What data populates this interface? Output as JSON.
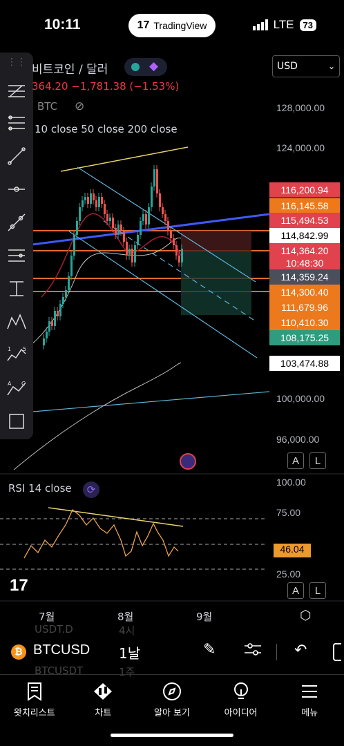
{
  "status": {
    "time": "10:11",
    "tv_label": "TradingView",
    "network": "LTE",
    "battery": "73"
  },
  "header": {
    "title": "비트코인 / 달러",
    "price_change": "364.20  −1,781.38 (−1.53%)",
    "ticker_small": "BTC",
    "indicators": "10 close 50 close 200 close",
    "currency": "USD"
  },
  "price_axis": {
    "ticks": [
      "128,000.00",
      "124,000.00",
      "100,000.00",
      "96,000.00"
    ],
    "tags": [
      {
        "label": "116,200.94",
        "bg": "#e0434d",
        "fg": "#ffffff"
      },
      {
        "label": "116,145.58",
        "bg": "#ec7a1c",
        "fg": "#ffffff"
      },
      {
        "label": "115,494.53",
        "bg": "#e0434d",
        "fg": "#ffffff"
      },
      {
        "label": "114,842.99",
        "bg": "#ffffff",
        "fg": "#000000"
      },
      {
        "label": "114,364.20",
        "bg": "#e0434d",
        "fg": "#ffffff"
      },
      {
        "label": "10:48:30",
        "bg": "#e0434d",
        "fg": "#ffffff"
      },
      {
        "label": "114,359.24",
        "bg": "#4a4f5c",
        "fg": "#ffffff"
      },
      {
        "label": "114,300.40",
        "bg": "#ec7a1c",
        "fg": "#ffffff"
      },
      {
        "label": "111,679.96",
        "bg": "#ec7a1c",
        "fg": "#ffffff"
      },
      {
        "label": "110,410.30",
        "bg": "#ec7a1c",
        "fg": "#ffffff"
      },
      {
        "label": "108,175.25",
        "bg": "#2e9c7e",
        "fg": "#ffffff"
      },
      {
        "label": "103,474.88",
        "bg": "#ffffff",
        "fg": "#000000"
      }
    ],
    "btn_a": "A",
    "btn_l": "L"
  },
  "rsi": {
    "label": "RSI 14 close",
    "ticks": [
      "100.00",
      "75.00",
      "25.00"
    ],
    "value_tag": "46.04",
    "value_tag_color": "#ec9a2c"
  },
  "time_axis": {
    "labels": [
      "7월",
      "8월",
      "9월"
    ]
  },
  "symbol_bar": {
    "symbol": "BTCUSD",
    "interval": "1날",
    "ghost_top_symbol": "USDT.D",
    "ghost_top_interval": "4시",
    "ghost_bottom_symbol": "BTCUSDT",
    "ghost_bottom_interval": "1주"
  },
  "bottom_nav": [
    {
      "label": "왓치리스트",
      "icon": "watchlist-icon"
    },
    {
      "label": "차트",
      "icon": "chart-candles-icon"
    },
    {
      "label": "알아 보기",
      "icon": "compass-icon"
    },
    {
      "label": "아이디어",
      "icon": "lightbulb-icon"
    },
    {
      "label": "메뉴",
      "icon": "hamburger-menu-icon"
    }
  ],
  "colors": {
    "up": "#26a69a",
    "down": "#ef5350",
    "trend_blue": "#3d5afe",
    "channel": "#5fb3d9",
    "yellow": "#e8d46a",
    "orange_line": "#e06a2a"
  }
}
